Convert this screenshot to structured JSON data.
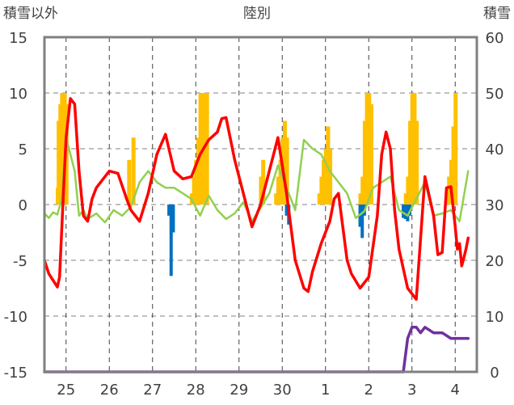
{
  "chart_data": {
    "type": "line",
    "title": "陸別",
    "y_left_label": "積雪以外",
    "y_right_label": "積雪",
    "y_left_range": [
      -15,
      15
    ],
    "y_right_range": [
      0,
      60
    ],
    "y_left_ticks": [
      "15",
      "10",
      "5",
      "0",
      "-5",
      "-10",
      "-15"
    ],
    "y_right_ticks": [
      "60",
      "50",
      "40",
      "30",
      "20",
      "10",
      "0"
    ],
    "x_ticks": [
      "25",
      "26",
      "27",
      "28",
      "29",
      "30",
      "1",
      "2",
      "3",
      "4"
    ],
    "x_range": [
      0,
      10
    ],
    "grid": true,
    "colors": {
      "temp_max": "#ff0000",
      "temp_min": "#92d050",
      "precip": "#ffc000",
      "negative_bars": "#0070c0",
      "snow_depth": "#7030a0"
    },
    "series": [
      {
        "key": "temp_max",
        "axis": "left",
        "x": [
          0,
          0.1,
          0.2,
          0.3,
          0.35,
          0.45,
          0.5,
          0.6,
          0.7,
          0.8,
          0.9,
          1.0,
          1.1,
          1.2,
          1.3,
          1.5,
          1.7,
          1.9,
          2.0,
          2.2,
          2.4,
          2.6,
          2.8,
          3.0,
          3.2,
          3.4,
          3.6,
          3.8,
          4.0,
          4.1,
          4.2,
          4.4,
          4.6,
          4.8,
          5.0,
          5.2,
          5.4,
          5.6,
          5.8,
          6.0,
          6.1,
          6.2,
          6.4,
          6.6,
          6.7,
          6.8,
          7.0,
          7.1,
          7.3,
          7.5,
          7.7,
          7.8,
          7.9,
          8.0,
          8.1,
          8.2,
          8.4,
          8.6,
          8.8,
          9.0,
          9.1,
          9.2,
          9.3,
          9.4,
          9.5,
          9.55,
          9.6,
          9.65,
          9.7,
          9.75,
          9.8
        ],
        "values": [
          -5,
          -6.2,
          -6.8,
          -7.4,
          -6.5,
          2.0,
          6.0,
          9.5,
          9.0,
          3.0,
          -1.0,
          -1.5,
          0.5,
          1.5,
          2.0,
          3.0,
          2.8,
          0.5,
          -0.5,
          -1.5,
          1.0,
          4.5,
          6.3,
          3.0,
          2.3,
          2.5,
          4.5,
          5.8,
          6.5,
          7.7,
          7.8,
          4.0,
          1.0,
          -2.0,
          0.0,
          3.0,
          6.0,
          1.0,
          -5.0,
          -7.5,
          -7.8,
          -6.0,
          -3.5,
          -1.5,
          0.5,
          1.0,
          -5.0,
          -6.2,
          -7.5,
          -6.5,
          -1.0,
          4.5,
          6.5,
          5.0,
          -0.5,
          -4.0,
          -7.5,
          -8.5,
          2.5,
          -1.0,
          -4.5,
          -4.3,
          1.5,
          1.6,
          -2.0,
          -4.0,
          -3.5,
          -5.5,
          -4.8,
          -4.0,
          -3.0
        ]
      },
      {
        "key": "temp_min",
        "axis": "left",
        "x": [
          0,
          0.1,
          0.2,
          0.3,
          0.4,
          0.5,
          0.6,
          0.7,
          0.8,
          0.9,
          1.0,
          1.2,
          1.4,
          1.6,
          1.8,
          2.0,
          2.2,
          2.4,
          2.6,
          2.8,
          3.0,
          3.2,
          3.4,
          3.6,
          3.8,
          4.0,
          4.2,
          4.4,
          4.6,
          4.8,
          5.0,
          5.2,
          5.4,
          5.6,
          5.8,
          6.0,
          6.2,
          6.4,
          6.6,
          6.8,
          7.0,
          7.2,
          7.4,
          7.6,
          7.8,
          8.0,
          8.2,
          8.4,
          8.6,
          8.8,
          9.0,
          9.2,
          9.4,
          9.6,
          9.8
        ],
        "values": [
          -0.8,
          -1.2,
          -0.7,
          -0.9,
          0.5,
          6.0,
          4.5,
          3.0,
          -1.0,
          -0.5,
          -1.3,
          -0.8,
          -1.6,
          -0.5,
          -1.0,
          -0.2,
          2.0,
          3.0,
          2.0,
          1.5,
          1.5,
          1.0,
          0.5,
          -1.0,
          0.8,
          -0.5,
          -1.3,
          -0.8,
          0.2,
          -1.5,
          -0.3,
          1.0,
          3.5,
          1.5,
          -0.5,
          5.8,
          5.0,
          4.5,
          3.0,
          2.0,
          1.0,
          -1.2,
          -0.6,
          1.5,
          2.0,
          2.5,
          -0.5,
          -1.0,
          0.5,
          2.0,
          -1.0,
          -0.8,
          -0.5,
          -1.5,
          3.0
        ]
      },
      {
        "key": "precip",
        "axis": "right",
        "x": [
          0.3,
          0.32,
          0.36,
          0.4,
          0.46,
          0.5,
          1.95,
          2.05,
          3.4,
          3.45,
          3.5,
          3.55,
          3.6,
          3.65,
          3.7,
          3.75,
          5.0,
          5.05,
          5.35,
          5.4,
          5.45,
          5.5,
          5.55,
          5.6,
          6.35,
          6.4,
          6.45,
          6.5,
          6.55,
          6.6,
          7.3,
          7.35,
          7.4,
          7.45,
          7.5,
          7.55,
          8.35,
          8.4,
          8.45,
          8.5,
          8.55,
          8.6,
          9.3,
          9.35,
          9.4,
          9.45,
          9.5
        ],
        "values": [
          33,
          45,
          48,
          50,
          50,
          48,
          38,
          42,
          32,
          35,
          38,
          42,
          50,
          50,
          50,
          50,
          35,
          38,
          32,
          35,
          38,
          42,
          45,
          42,
          32,
          35,
          38,
          40,
          44,
          40,
          32,
          35,
          45,
          50,
          50,
          48,
          32,
          35,
          45,
          50,
          50,
          45,
          33,
          35,
          38,
          44,
          50
        ]
      },
      {
        "key": "negative_bars",
        "axis": "left",
        "x": [
          2.88,
          2.93,
          2.98,
          5.6,
          5.65,
          7.3,
          7.35,
          7.4,
          8.3,
          8.35,
          8.4,
          8.45
        ],
        "values": [
          -1.0,
          -6.4,
          -2.5,
          -1.0,
          -1.8,
          -2.0,
          -3.0,
          -1.0,
          -1.2,
          -1.3,
          -1.5,
          -1.0
        ]
      },
      {
        "key": "snow_depth",
        "axis": "right",
        "x": [
          0,
          2,
          4,
          6,
          8,
          8.3,
          8.4,
          8.5,
          8.6,
          8.7,
          8.8,
          9.0,
          9.2,
          9.4,
          9.8
        ],
        "values": [
          0,
          0,
          0,
          0,
          0,
          0,
          6,
          8,
          8,
          7,
          8,
          7,
          7,
          6,
          6
        ]
      }
    ]
  }
}
